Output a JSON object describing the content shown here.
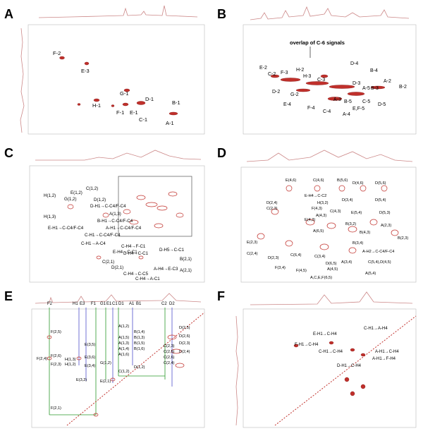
{
  "figure": {
    "panels": [
      {
        "id": "A",
        "label": "A",
        "annotations": [
          "F-2",
          "E-3",
          "G-1",
          "D-1",
          "H-1",
          "F-1",
          "E-1",
          "B-1",
          "C-1",
          "A-1"
        ]
      },
      {
        "id": "B",
        "label": "B",
        "header_note": "overlap of C-6 signals",
        "annotations": [
          "D-4",
          "B-4",
          "E-2",
          "C-2",
          "F-3",
          "H-2",
          "H-3",
          "C-3",
          "A-2",
          "B-2",
          "D-2",
          "G-2",
          "D-3",
          "A-5",
          "B-3",
          "E-4",
          "A-3",
          "B-5",
          "C-5",
          "D-5",
          "F-4",
          "C-4",
          "A-4",
          "E,F-5"
        ]
      },
      {
        "id": "C",
        "label": "C",
        "annotations": [
          "C(1,2)",
          "E(1,2)",
          "G(1,2)",
          "H(1,2)",
          "D(1,2)",
          "H(1,3)",
          "D-H1→C-C4/F-C4",
          "A(1,3)",
          "B-H1→C-C4/F-C4",
          "E-H1→C-C4/F-C4",
          "A-H1→C-C4/F-C4",
          "C-H1→C-C4/F-C4",
          "C-H1→A-C4",
          "E-H4→C-C1",
          "C-H4→F-C1",
          "D-H4→C-C1",
          "D-H5→C-C1",
          "B(2,1)",
          "C(2,1)",
          "D(2,1)",
          "C-H4→C-C5",
          "A-H4→E-C3",
          "C-H4→A-C1",
          "A(2,1)"
        ]
      },
      {
        "id": "D",
        "label": "D",
        "annotations": [
          "E(4,6)",
          "C(4,6)",
          "B(5,6)",
          "D(4,6)",
          "D(5,6)",
          "E-H4→C-C2",
          "D(2,4)",
          "H(3,2)",
          "D(3,4)",
          "D(5,4)",
          "C(2,3)",
          "F(4,3)",
          "C(4,3)",
          "E(5,4)",
          "A(4,3)",
          "D(5,3)",
          "E(4,3)",
          "A(6,5)",
          "B(3,2)",
          "A(2,3)",
          "E(2,3)",
          "B(4,3)",
          "B(2,3)",
          "C(2,4)",
          "D(2,3)",
          "C(6,4)",
          "C(3,4)",
          "B(3,4)",
          "A-H2→C-C4/F-C4",
          "F(3,4)",
          "F(4,5)",
          "D(6,5)",
          "A(3,4)",
          "C(5,4),D(4,5)",
          "A,C,E,F(6,5)",
          "A(5,4)",
          "A(4,5)"
        ]
      },
      {
        "id": "E",
        "label": "E",
        "top_labels": [
          "F2",
          "H1",
          "E3",
          "F1",
          "G1",
          "E1",
          "C1",
          "D1",
          "A1",
          "B1",
          "C2",
          "D2"
        ],
        "annotations": [
          "A(1,2)",
          "B(1,4)",
          "B(1,3)",
          "A(1,5)",
          "A(1,3)",
          "B(1,5)",
          "A(1,4)",
          "B(1,6)",
          "A(1,6)",
          "F(2,5)",
          "F(2,6)",
          "F(2,4)",
          "F(2,3)",
          "H(1,3)",
          "H(1,2)",
          "E(3,5)",
          "E(3,6)",
          "E(3,4)",
          "E(3,2)",
          "G(1,2)",
          "D(2,5)",
          "D(2,6)",
          "D(2,3)",
          "D(2,4)",
          "C(2,3)",
          "C(2,5)",
          "C(2,6)",
          "C(2,4)",
          "D(1,2)",
          "C(1,2)",
          "E(2,1)",
          "F(2,1)"
        ]
      },
      {
        "id": "F",
        "label": "F",
        "annotations": [
          "E-H1→C-H4",
          "C-H1→A-H4",
          "F-H1→C-H4",
          "C-H1→C-H4",
          "A-H1→C-H4",
          "A-H1→F-H4",
          "D-H1→C-H4"
        ]
      }
    ]
  }
}
